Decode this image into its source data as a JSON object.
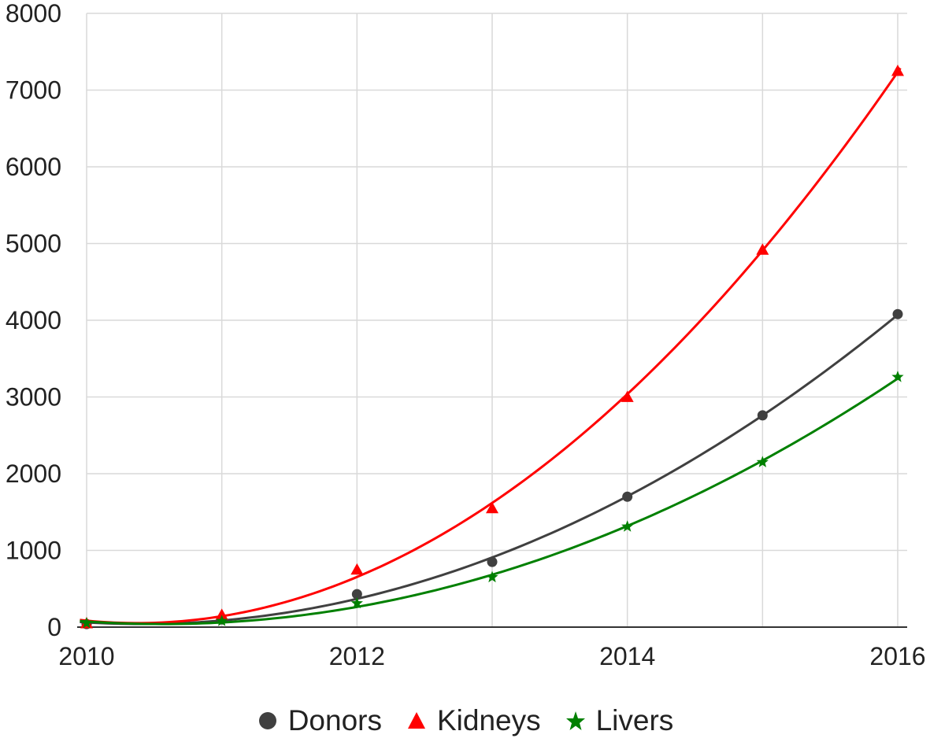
{
  "chart_data": {
    "type": "line",
    "x": [
      2010,
      2011,
      2012,
      2013,
      2014,
      2015,
      2016
    ],
    "xticks": [
      "2010",
      "2012",
      "2014",
      "2016"
    ],
    "yticks": [
      "0",
      "1000",
      "2000",
      "3000",
      "4000",
      "5000",
      "6000",
      "7000",
      "8000"
    ],
    "xlim": [
      2010,
      2016
    ],
    "ylim": [
      0,
      8000
    ],
    "grid": true,
    "legend_position": "bottom",
    "title": "",
    "xlabel": "",
    "ylabel": "",
    "series": [
      {
        "name": "Donors",
        "color": "#404040",
        "marker": "circle",
        "values": [
          40,
          100,
          430,
          850,
          1700,
          2760,
          4080
        ]
      },
      {
        "name": "Kidneys",
        "color": "#ff0000",
        "marker": "triangle",
        "values": [
          50,
          160,
          750,
          1550,
          3000,
          4920,
          7250
        ]
      },
      {
        "name": "Livers",
        "color": "#008000",
        "marker": "star",
        "values": [
          50,
          80,
          310,
          650,
          1310,
          2150,
          3260
        ]
      }
    ]
  }
}
